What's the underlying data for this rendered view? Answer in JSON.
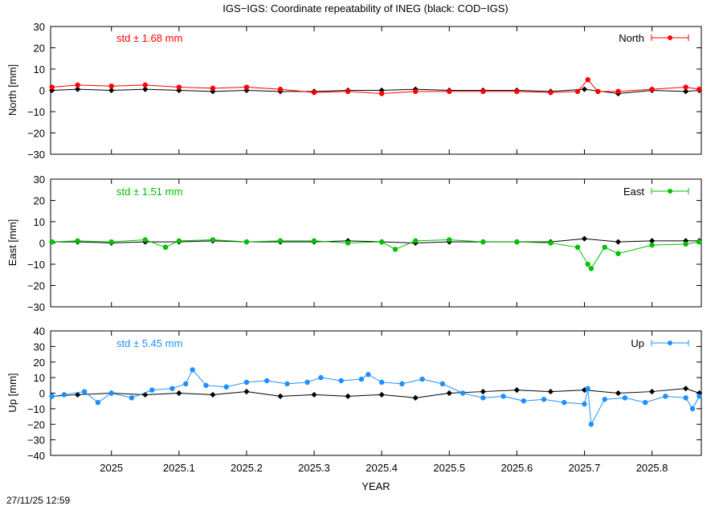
{
  "figure": {
    "title": "IGS−IGS: Coordinate repeatability of INEG (black: COD−IGS)",
    "xlabel": "YEAR",
    "timestamp": "27/11/25 12:59"
  },
  "chart_data": [
    {
      "type": "line",
      "panel": "north",
      "ylabel": "North [mm]",
      "legend": "North",
      "legend_position": "top-right",
      "std_label": "std ± 1.68 mm",
      "color": "#ff0000",
      "reference_color": "#000000",
      "xlim": [
        2024.91,
        2025.873
      ],
      "ylim": [
        -30,
        30
      ],
      "yticks": [
        "−30",
        "−20",
        "−10",
        "0",
        "10",
        "20",
        "30"
      ],
      "xticks": [
        "2025",
        "2025.1",
        "2025.2",
        "2025.3",
        "2025.4",
        "2025.5",
        "2025.6",
        "2025.7",
        "2025.8"
      ],
      "series": [
        {
          "x": [
            2024.912,
            2024.95,
            2025.0,
            2025.05,
            2025.1,
            2025.15,
            2025.2,
            2025.25,
            2025.3,
            2025.35,
            2025.4,
            2025.45,
            2025.5,
            2025.55,
            2025.6,
            2025.65,
            2025.69,
            2025.705,
            2025.72,
            2025.75,
            2025.8,
            2025.85,
            2025.87
          ],
          "y": [
            1.5,
            2.5,
            2.0,
            2.5,
            1.5,
            1.0,
            1.5,
            0.5,
            -1.0,
            -0.5,
            -1.5,
            -0.5,
            -0.5,
            -0.5,
            -0.5,
            -1.0,
            -0.5,
            5.0,
            -0.5,
            -0.5,
            0.5,
            1.5,
            0.5
          ]
        },
        {
          "name": "COD−IGS",
          "x": [
            2024.912,
            2024.95,
            2025.0,
            2025.05,
            2025.1,
            2025.15,
            2025.2,
            2025.25,
            2025.3,
            2025.35,
            2025.4,
            2025.45,
            2025.5,
            2025.55,
            2025.6,
            2025.65,
            2025.7,
            2025.75,
            2025.8,
            2025.85,
            2025.87
          ],
          "y": [
            0.0,
            0.5,
            0.0,
            0.5,
            0.0,
            -0.5,
            0.0,
            -0.5,
            -0.5,
            0.0,
            0.0,
            0.5,
            0.0,
            0.0,
            0.0,
            -0.5,
            0.5,
            -1.5,
            0.0,
            -0.5,
            0.0
          ]
        }
      ]
    },
    {
      "type": "line",
      "panel": "east",
      "ylabel": "East [mm]",
      "legend": "East",
      "legend_position": "top-right",
      "std_label": "std ± 1.51 mm",
      "color": "#00c000",
      "reference_color": "#000000",
      "xlim": [
        2024.91,
        2025.873
      ],
      "ylim": [
        -30,
        30
      ],
      "yticks": [
        "−30",
        "−20",
        "−10",
        "0",
        "10",
        "20",
        "30"
      ],
      "xticks": [
        "2025",
        "2025.1",
        "2025.2",
        "2025.3",
        "2025.4",
        "2025.5",
        "2025.6",
        "2025.7",
        "2025.8"
      ],
      "series": [
        {
          "x": [
            2024.912,
            2024.95,
            2025.0,
            2025.05,
            2025.08,
            2025.1,
            2025.15,
            2025.2,
            2025.25,
            2025.3,
            2025.35,
            2025.4,
            2025.42,
            2025.45,
            2025.5,
            2025.55,
            2025.6,
            2025.65,
            2025.69,
            2025.705,
            2025.71,
            2025.73,
            2025.75,
            2025.8,
            2025.85,
            2025.87
          ],
          "y": [
            0.5,
            1.0,
            0.5,
            1.5,
            -2.0,
            1.0,
            1.5,
            0.5,
            1.0,
            1.0,
            0.0,
            0.5,
            -3.0,
            1.0,
            1.5,
            0.5,
            0.5,
            0.0,
            -2.0,
            -10.0,
            -12.0,
            -2.0,
            -5.0,
            -1.0,
            -0.5,
            0.5
          ]
        },
        {
          "name": "COD−IGS",
          "x": [
            2024.912,
            2024.95,
            2025.0,
            2025.05,
            2025.1,
            2025.15,
            2025.2,
            2025.25,
            2025.3,
            2025.35,
            2025.4,
            2025.45,
            2025.5,
            2025.55,
            2025.6,
            2025.65,
            2025.7,
            2025.75,
            2025.8,
            2025.85,
            2025.87
          ],
          "y": [
            0.5,
            0.5,
            0.0,
            0.5,
            0.5,
            1.0,
            0.5,
            0.5,
            0.5,
            1.0,
            0.5,
            0.0,
            0.5,
            0.5,
            0.5,
            0.5,
            2.0,
            0.5,
            1.0,
            1.0,
            1.0
          ]
        }
      ]
    },
    {
      "type": "line",
      "panel": "up",
      "ylabel": "Up [mm]",
      "legend": "Up",
      "legend_position": "top-right",
      "std_label": "std ± 5.45 mm",
      "color": "#1e90ff",
      "reference_color": "#000000",
      "xlim": [
        2024.91,
        2025.873
      ],
      "ylim": [
        -40,
        40
      ],
      "yticks": [
        "−40",
        "−30",
        "−20",
        "−10",
        "0",
        "10",
        "20",
        "30",
        "40"
      ],
      "xticks": [
        "2025",
        "2025.1",
        "2025.2",
        "2025.3",
        "2025.4",
        "2025.5",
        "2025.6",
        "2025.7",
        "2025.8"
      ],
      "series": [
        {
          "x": [
            2024.912,
            2024.93,
            2024.96,
            2024.98,
            2025.0,
            2025.03,
            2025.06,
            2025.09,
            2025.11,
            2025.12,
            2025.14,
            2025.17,
            2025.2,
            2025.23,
            2025.26,
            2025.29,
            2025.31,
            2025.34,
            2025.37,
            2025.38,
            2025.4,
            2025.43,
            2025.46,
            2025.49,
            2025.52,
            2025.55,
            2025.58,
            2025.61,
            2025.64,
            2025.67,
            2025.7,
            2025.705,
            2025.71,
            2025.73,
            2025.76,
            2025.79,
            2025.82,
            2025.85,
            2025.86,
            2025.87
          ],
          "y": [
            -2.0,
            -1.0,
            1.0,
            -6.0,
            0.0,
            -3.0,
            2.0,
            3.0,
            6.0,
            15.0,
            5.0,
            4.0,
            7.0,
            8.0,
            6.0,
            7.0,
            10.0,
            8.0,
            9.0,
            12.0,
            7.0,
            6.0,
            9.0,
            6.0,
            0.0,
            -3.0,
            -2.0,
            -5.0,
            -4.0,
            -6.0,
            -7.0,
            3.0,
            -20.0,
            -4.0,
            -3.0,
            -6.0,
            -2.0,
            -3.0,
            -10.0,
            -2.0
          ]
        },
        {
          "name": "COD−IGS",
          "x": [
            2024.912,
            2024.95,
            2025.0,
            2025.05,
            2025.1,
            2025.15,
            2025.2,
            2025.25,
            2025.3,
            2025.35,
            2025.4,
            2025.45,
            2025.5,
            2025.55,
            2025.6,
            2025.65,
            2025.7,
            2025.75,
            2025.8,
            2025.85,
            2025.87
          ],
          "y": [
            -2.0,
            -1.0,
            0.0,
            -1.0,
            0.0,
            -1.0,
            1.0,
            -2.0,
            -1.0,
            -2.0,
            -1.0,
            -3.0,
            0.0,
            1.0,
            2.0,
            1.0,
            2.0,
            0.0,
            1.0,
            3.0,
            0.0
          ]
        }
      ]
    }
  ]
}
